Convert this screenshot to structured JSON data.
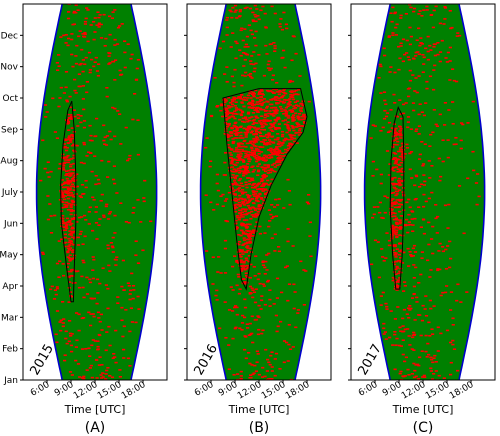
{
  "chart_data": [
    {
      "type": "scatter",
      "panel_label": "(A)",
      "year_label": "2015",
      "xlabel": "Time [UTC]",
      "x_ticks": [
        "6:00",
        "9:00",
        "12:00",
        "15:00",
        "18:00"
      ],
      "y_ticks": [
        "Jan",
        "Feb",
        "Mar",
        "Apr",
        "May",
        "Jun",
        "July",
        "Aug",
        "Sep",
        "Oct",
        "Nov",
        "Dec"
      ],
      "xlim": [
        3,
        21
      ],
      "ylim": [
        1,
        13
      ],
      "colors": {
        "dense": "#008000",
        "points": "#ff0000",
        "envelope": "#0000cc",
        "outline": "#000000"
      },
      "heavy_red_region": [
        [
          9.0,
          3.5
        ],
        [
          8.5,
          4.5
        ],
        [
          7.8,
          6
        ],
        [
          7.7,
          7.2
        ],
        [
          8.0,
          8.5
        ],
        [
          8.6,
          9.6
        ],
        [
          9.1,
          9.9
        ],
        [
          9.4,
          9.0
        ],
        [
          9.6,
          7.5
        ],
        [
          9.6,
          6
        ],
        [
          9.4,
          4.5
        ],
        [
          9.3,
          3.5
        ]
      ]
    },
    {
      "type": "scatter",
      "panel_label": "(B)",
      "year_label": "2016",
      "xlabel": "Time [UTC]",
      "x_ticks": [
        "6:00",
        "9:00",
        "12:00",
        "15:00",
        "18:00"
      ],
      "y_ticks": [
        "Jan",
        "Feb",
        "Mar",
        "Apr",
        "May",
        "Jun",
        "July",
        "Aug",
        "Sep",
        "Oct",
        "Nov",
        "Dec"
      ],
      "xlim": [
        3,
        21
      ],
      "ylim": [
        1,
        13
      ],
      "colors": {
        "dense": "#008000",
        "points": "#ff0000",
        "envelope": "#0000cc",
        "outline": "#000000"
      },
      "heavy_red_region": [
        [
          7.5,
          10
        ],
        [
          8.0,
          8.5
        ],
        [
          8.6,
          7
        ],
        [
          9.2,
          5.5
        ],
        [
          9.8,
          4.2
        ],
        [
          10.4,
          3.9
        ],
        [
          11.0,
          5
        ],
        [
          12.0,
          6.2
        ],
        [
          13.5,
          7.2
        ],
        [
          15.5,
          8.2
        ],
        [
          17.5,
          8.9
        ],
        [
          18.0,
          9.4
        ],
        [
          17.2,
          10.3
        ],
        [
          12.0,
          10.3
        ]
      ]
    },
    {
      "type": "scatter",
      "panel_label": "(C)",
      "year_label": "2017",
      "xlabel": "Time [UTC]",
      "x_ticks": [
        "6:00",
        "9:00",
        "12:00",
        "15:00",
        "18:00"
      ],
      "y_ticks": [
        "Jan",
        "Feb",
        "Mar",
        "Apr",
        "May",
        "Jun",
        "July",
        "Aug",
        "Sep",
        "Oct",
        "Nov",
        "Dec"
      ],
      "xlim": [
        3,
        21
      ],
      "ylim": [
        1,
        13
      ],
      "colors": {
        "dense": "#008000",
        "points": "#ff0000",
        "envelope": "#0000cc",
        "outline": "#000000"
      },
      "heavy_red_region": [
        [
          8.6,
          3.9
        ],
        [
          8.2,
          5
        ],
        [
          7.9,
          6.5
        ],
        [
          8.0,
          8
        ],
        [
          8.4,
          9.2
        ],
        [
          8.9,
          9.7
        ],
        [
          9.5,
          9.4
        ],
        [
          9.6,
          8
        ],
        [
          9.6,
          6.5
        ],
        [
          9.4,
          5
        ],
        [
          9.1,
          3.9
        ]
      ]
    }
  ]
}
